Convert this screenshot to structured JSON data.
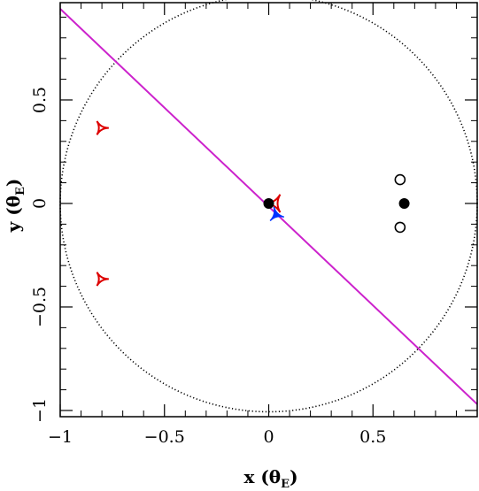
{
  "chart_data": {
    "type": "scatter",
    "xlabel": "x (θ",
    "xlabel_sub": "E",
    "xlabel_close": ")",
    "ylabel": "y (θ",
    "ylabel_sub": "E",
    "ylabel_close": ")",
    "xlim": [
      -1.0,
      1.0
    ],
    "ylim": [
      -1.03,
      0.97
    ],
    "x_ticks": [
      {
        "value": -1.0,
        "label": "−1"
      },
      {
        "value": -0.5,
        "label": "−0.5"
      },
      {
        "value": 0.0,
        "label": "0"
      },
      {
        "value": 0.5,
        "label": "0.5"
      }
    ],
    "y_ticks": [
      {
        "value": -1.0,
        "label": "−1"
      },
      {
        "value": -0.5,
        "label": "−0.5"
      },
      {
        "value": 0.0,
        "label": "0"
      },
      {
        "value": 0.5,
        "label": "0.5"
      }
    ],
    "minor_tick_step": 0.1,
    "einstein_ring": {
      "cx": 0.0,
      "cy": 0.0,
      "r": 1.0,
      "style": "dotted",
      "color": "#000000"
    },
    "source_trajectory": {
      "x": [
        -1.0,
        1.0
      ],
      "y": [
        0.94,
        -0.97
      ],
      "color": "#cc22cc"
    },
    "lens_components": {
      "filled": [
        {
          "x": 0.0,
          "y": 0.0
        },
        {
          "x": 0.65,
          "y": 0.0
        }
      ],
      "open": [
        {
          "x": 0.63,
          "y": 0.115
        },
        {
          "x": 0.63,
          "y": -0.115
        }
      ]
    },
    "caustics_red": [
      {
        "x": -0.805,
        "y": 0.365,
        "size": 0.038,
        "orientation": "right"
      },
      {
        "x": -0.805,
        "y": -0.365,
        "size": 0.038,
        "orientation": "right"
      },
      {
        "x": 0.03,
        "y": 0.0,
        "size": 0.05,
        "orientation": "left"
      }
    ],
    "caustics_blue": [
      {
        "x": 0.035,
        "y": -0.055,
        "size": 0.04,
        "orientation": "up-left"
      }
    ],
    "colors": {
      "red": "#dd0000",
      "blue": "#0033ff",
      "trajectory": "#cc22cc",
      "axis": "#000000"
    }
  }
}
